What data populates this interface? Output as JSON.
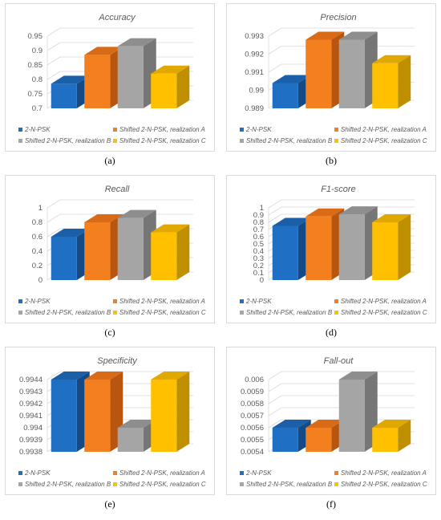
{
  "colors": {
    "2-N-PSK": {
      "front": "#1F6FC5",
      "top": "#1A5FA8",
      "side": "#144B86"
    },
    "Shifted 2-N-PSK, realization A": {
      "front": "#F47F1F",
      "top": "#D96A16",
      "side": "#B85610"
    },
    "Shifted 2-N-PSK, realization B": {
      "front": "#A5A5A5",
      "top": "#8E8E8E",
      "side": "#767676"
    },
    "Shifted 2-N-PSK, realization C": {
      "front": "#FFC000",
      "top": "#E0A800",
      "side": "#BF8F00"
    }
  },
  "chart_data": [
    {
      "type": "bar",
      "title": "Accuracy",
      "caption": "(a)",
      "categories": [
        "2-N-PSK",
        "Shifted 2-N-PSK, realization A",
        "Shifted 2-N-PSK, realization B",
        "Shifted 2-N-PSK, realization C"
      ],
      "values": [
        0.785,
        0.885,
        0.915,
        0.82
      ],
      "ylim": [
        0.7,
        0.95
      ],
      "yticks": [
        "0.7",
        "0.75",
        "0.8",
        "0.85",
        "0.9",
        "0.95"
      ],
      "legend": "bottom"
    },
    {
      "type": "bar",
      "title": "Precision",
      "caption": "(b)",
      "categories": [
        "2-N-PSK",
        "Shifted 2-N-PSK, realization A",
        "Shifted 2-N-PSK, realization B",
        "Shifted 2-N-PSK, realization C"
      ],
      "values": [
        0.9904,
        0.9928,
        0.9928,
        0.9915
      ],
      "ylim": [
        0.989,
        0.993
      ],
      "yticks": [
        "0.989",
        "0.99",
        "0.991",
        "0.992",
        "0.993"
      ],
      "legend": "bottom"
    },
    {
      "type": "bar",
      "title": "Recall",
      "caption": "(c)",
      "categories": [
        "2-N-PSK",
        "Shifted 2-N-PSK, realization A",
        "Shifted 2-N-PSK, realization B",
        "Shifted 2-N-PSK, realization C"
      ],
      "values": [
        0.6,
        0.8,
        0.86,
        0.66
      ],
      "ylim": [
        0,
        1
      ],
      "yticks": [
        "0",
        "0.2",
        "0.4",
        "0.6",
        "0.8",
        "1"
      ],
      "legend": "bottom"
    },
    {
      "type": "bar",
      "title": "F1-score",
      "caption": "(d)",
      "categories": [
        "2-N-PSK",
        "Shifted 2-N-PSK, realization A",
        "Shifted 2-N-PSK, realization B",
        "Shifted 2-N-PSK, realization C"
      ],
      "values": [
        0.75,
        0.88,
        0.91,
        0.8
      ],
      "ylim": [
        0,
        1
      ],
      "yticks": [
        "0",
        "0.1",
        "0.2",
        "0.3",
        "0.4",
        "0.5",
        "0.6",
        "0.7",
        "0.8",
        "0.9",
        "1"
      ],
      "legend": "bottom"
    },
    {
      "type": "bar",
      "title": "Specificity",
      "caption": "(e)",
      "categories": [
        "2-N-PSK",
        "Shifted 2-N-PSK, realization A",
        "Shifted 2-N-PSK, realization B",
        "Shifted 2-N-PSK, realization C"
      ],
      "values": [
        0.9944,
        0.9944,
        0.994,
        0.9944
      ],
      "ylim": [
        0.9938,
        0.9944
      ],
      "yticks": [
        "0.9938",
        "0.9939",
        "0.994",
        "0.9941",
        "0.9942",
        "0.9943",
        "0.9944"
      ],
      "legend": "bottom"
    },
    {
      "type": "bar",
      "title": "Fall-out",
      "caption": "(f)",
      "categories": [
        "2-N-PSK",
        "Shifted 2-N-PSK, realization A",
        "Shifted 2-N-PSK, realization B",
        "Shifted 2-N-PSK, realization C"
      ],
      "values": [
        0.0056,
        0.0056,
        0.006,
        0.0056
      ],
      "ylim": [
        0.0054,
        0.006
      ],
      "yticks": [
        "0.0054",
        "0.0055",
        "0.0056",
        "0.0057",
        "0.0058",
        "0.0059",
        "0.006"
      ],
      "legend": "bottom"
    }
  ]
}
